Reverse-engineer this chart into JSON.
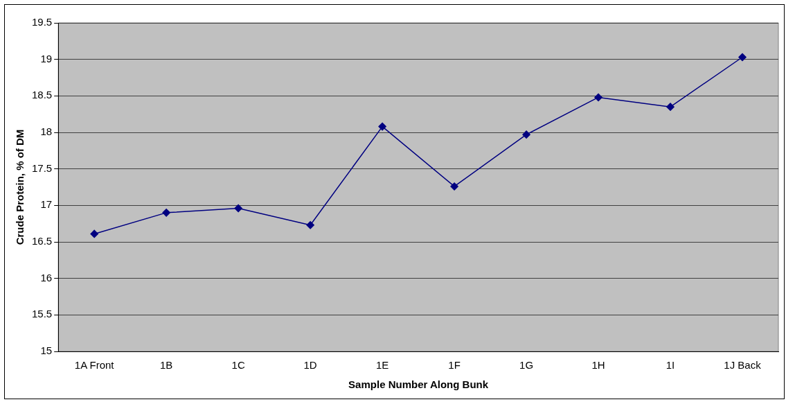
{
  "chart_data": {
    "type": "line",
    "xlabel": "Sample Number Along Bunk",
    "ylabel": "Crude Protein, % of DM",
    "categories": [
      "1A Front",
      "1B",
      "1C",
      "1D",
      "1E",
      "1F",
      "1G",
      "1H",
      "1I",
      "1J Back"
    ],
    "series": [
      {
        "color": "#000080",
        "values": [
          16.61,
          16.9,
          16.96,
          16.73,
          18.08,
          17.26,
          17.97,
          18.48,
          18.35,
          19.03
        ]
      }
    ],
    "ylim": [
      15,
      19.5
    ],
    "yticks": [
      15,
      15.5,
      16,
      16.5,
      17,
      17.5,
      18,
      18.5,
      19,
      19.5
    ],
    "grid": "y",
    "legend": false,
    "marker": "diamond",
    "line_style": "solid"
  }
}
